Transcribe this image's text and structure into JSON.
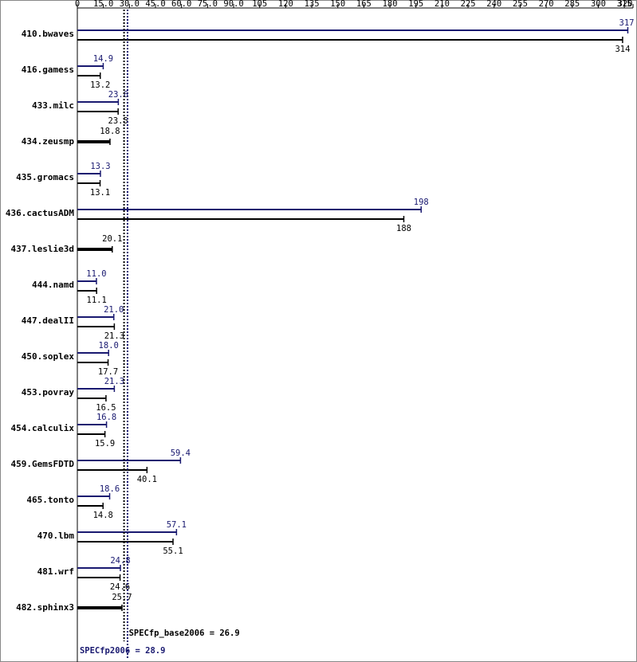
{
  "chart_data": {
    "type": "bar",
    "categories": [
      "410.bwaves",
      "416.gamess",
      "433.milc",
      "434.zeusmp",
      "435.gromacs",
      "436.cactusADM",
      "437.leslie3d",
      "444.namd",
      "447.dealII",
      "450.soplex",
      "453.povray",
      "454.calculix",
      "459.GemsFDTD",
      "465.tonto",
      "470.lbm",
      "481.wrf",
      "482.sphinx3"
    ],
    "series": [
      {
        "color": "#191970",
        "values": [
          317,
          14.9,
          23.6,
          null,
          13.3,
          198,
          null,
          11.0,
          21.0,
          18.0,
          21.3,
          16.8,
          59.4,
          18.6,
          57.1,
          24.8,
          null
        ],
        "value_labels": [
          "317",
          "14.9",
          "23.6",
          null,
          "13.3",
          "198",
          null,
          "11.0",
          "21.0",
          "18.0",
          "21.3",
          "16.8",
          "59.4",
          "18.6",
          "57.1",
          "24.8",
          null
        ]
      },
      {
        "color": "#000000",
        "values": [
          314,
          13.2,
          23.5,
          18.8,
          13.1,
          188,
          20.1,
          11.1,
          21.3,
          17.7,
          16.5,
          15.9,
          40.1,
          14.8,
          55.1,
          24.6,
          25.7
        ],
        "value_labels": [
          "314",
          "13.2",
          "23.5",
          "18.8",
          "13.1",
          "188",
          "20.1",
          "11.1",
          "21.3",
          "17.7",
          "16.5",
          "15.9",
          "40.1",
          "14.8",
          "55.1",
          "24.6",
          "25.7"
        ]
      }
    ],
    "xlim": [
      0,
      320
    ],
    "xticks": [
      0,
      {
        "value": 15,
        "label": "15.0"
      },
      {
        "value": 30,
        "label": "30.0"
      },
      {
        "value": 45,
        "label": "45.0"
      },
      {
        "value": 60,
        "label": "60.0"
      },
      {
        "value": 75,
        "label": "75.0"
      },
      {
        "value": 90,
        "label": "90.0"
      },
      105,
      120,
      135,
      150,
      165,
      180,
      195,
      210,
      225,
      240,
      255,
      270,
      285,
      300,
      315,
      320
    ],
    "reference_lines": [
      {
        "value": 26.9,
        "label": "SPECfp_base2006 = 26.9",
        "color": "#000000"
      },
      {
        "value": 28.9,
        "label": "SPECfp2006 = 28.9",
        "color": "#191970"
      }
    ]
  }
}
